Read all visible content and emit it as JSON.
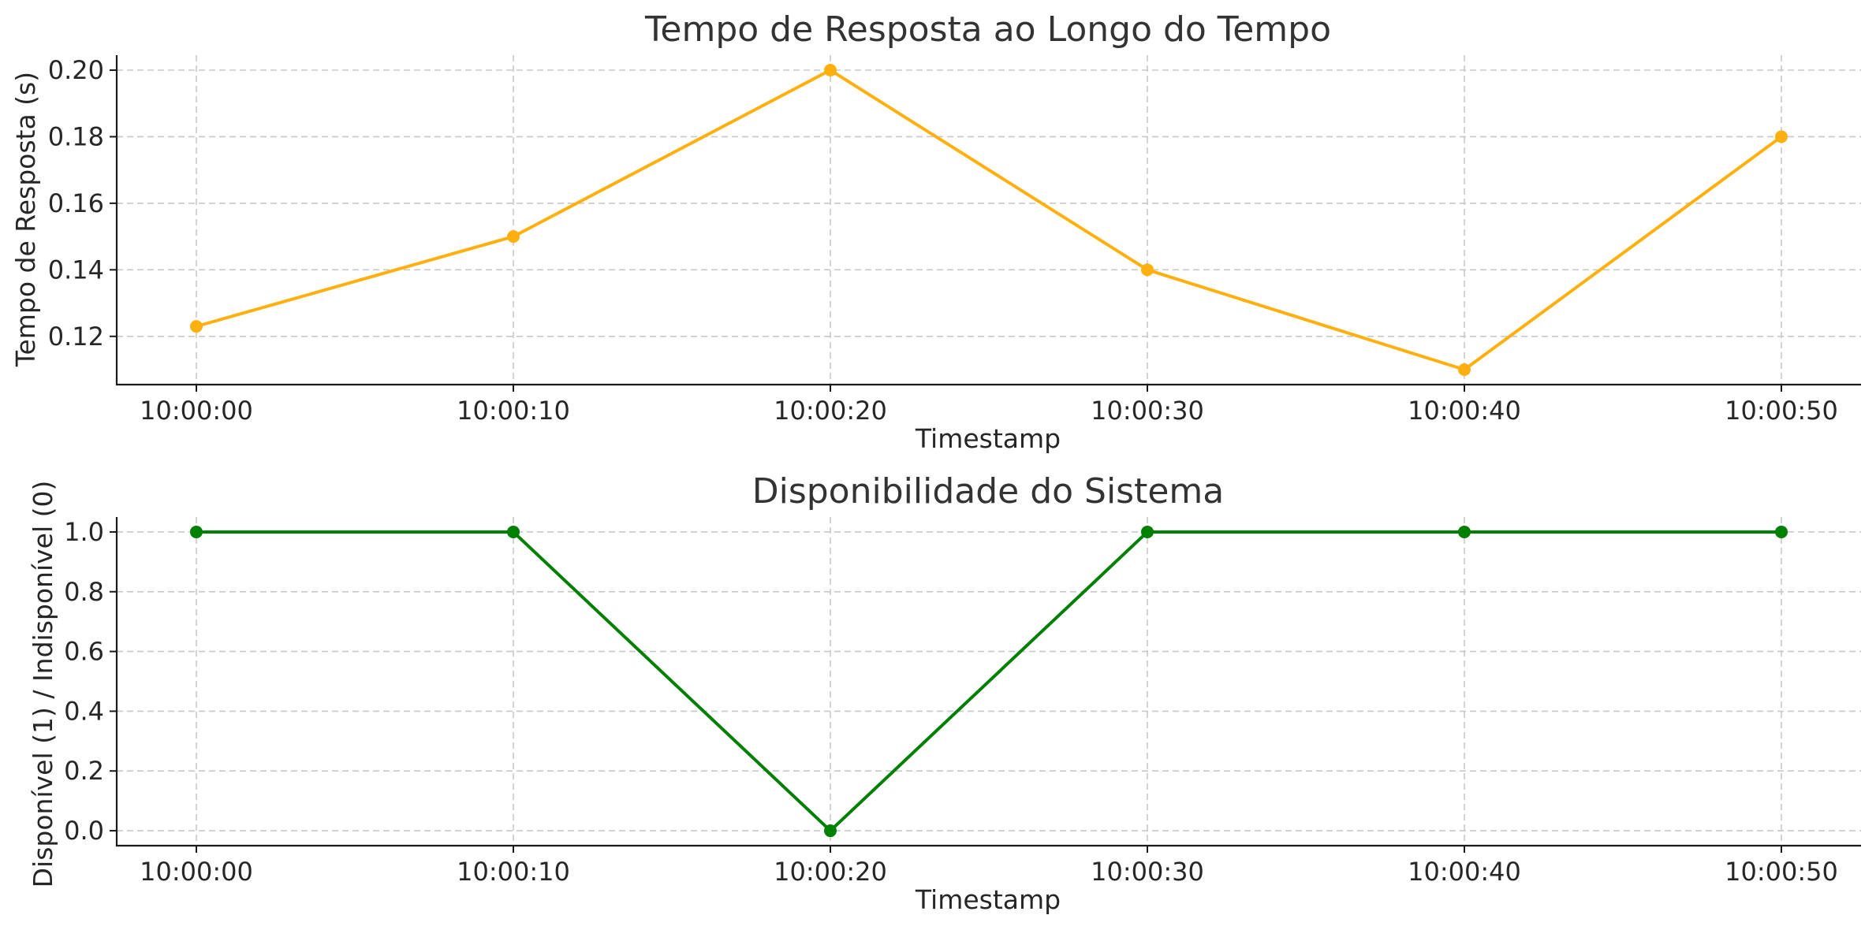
{
  "chart_data": [
    {
      "type": "line",
      "title": "Tempo de Resposta ao Longo do Tempo",
      "xlabel": "Timestamp",
      "ylabel": "Tempo de Resposta (s)",
      "categories": [
        "10:00:00",
        "10:00:10",
        "10:00:20",
        "10:00:30",
        "10:00:40",
        "10:00:50"
      ],
      "series": [
        {
          "values": [
            0.123,
            0.15,
            0.2,
            0.14,
            0.11,
            0.18
          ],
          "color": "#FFB00F",
          "marker": "circle"
        }
      ],
      "ylim": [
        0.1055,
        0.2045
      ],
      "yticks": [
        0.12,
        0.14,
        0.16,
        0.18,
        0.2
      ],
      "ytick_labels": [
        "0.12",
        "0.14",
        "0.16",
        "0.18",
        "0.20"
      ],
      "grid": true
    },
    {
      "type": "line",
      "title": "Disponibilidade do Sistema",
      "xlabel": "Timestamp",
      "ylabel": "Disponível (1) / Indisponível (0)",
      "categories": [
        "10:00:00",
        "10:00:10",
        "10:00:20",
        "10:00:30",
        "10:00:40",
        "10:00:50"
      ],
      "series": [
        {
          "values": [
            1,
            1,
            0,
            1,
            1,
            1
          ],
          "color": "#008000",
          "marker": "circle"
        }
      ],
      "ylim": [
        -0.05,
        1.05
      ],
      "yticks": [
        0.0,
        0.2,
        0.4,
        0.6,
        0.8,
        1.0
      ],
      "ytick_labels": [
        "0.0",
        "0.2",
        "0.4",
        "0.6",
        "0.8",
        "1.0"
      ],
      "grid": true
    }
  ]
}
